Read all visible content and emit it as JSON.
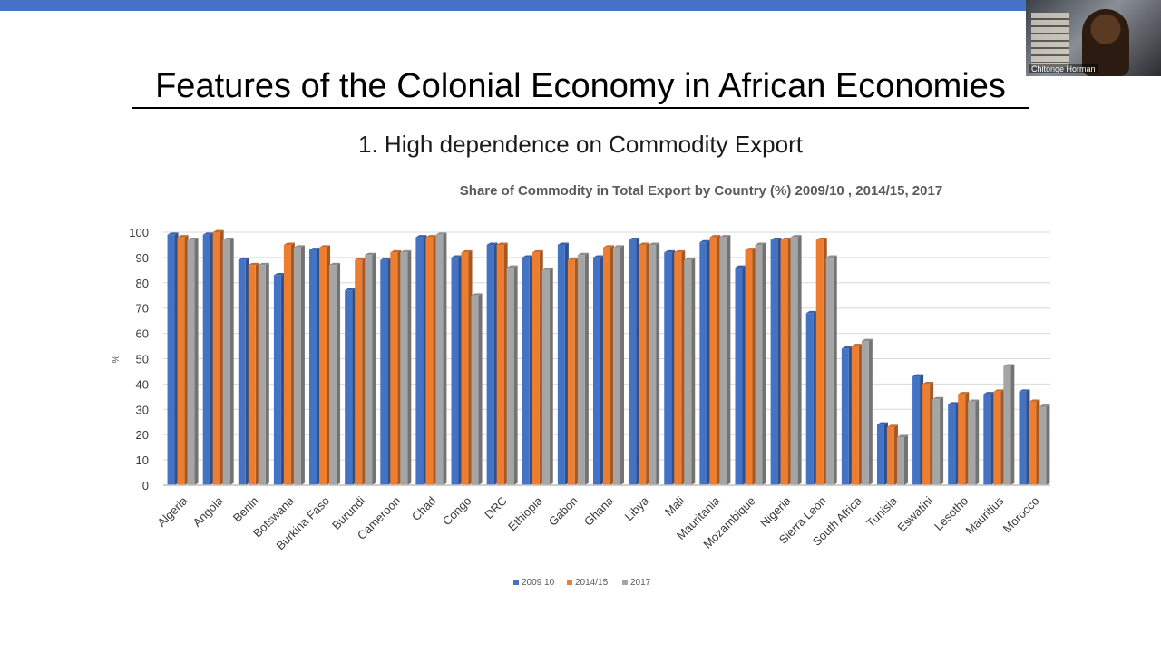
{
  "slide": {
    "title": "Features of the Colonial Economy in African Economies",
    "subtitle": "1. High dependence on Commodity Export"
  },
  "video": {
    "participant_name": "Chitonge  Horman"
  },
  "colors": {
    "top_bar": "#4472c4",
    "series_2009_10": "#4472c4",
    "series_2014_15": "#ed7d31",
    "series_2017": "#a5a5a5"
  },
  "chart_data": {
    "type": "bar",
    "title": "Share of Commodity in Total Export by Country (%) 2009/10 , 2014/15, 2017",
    "xlabel": "",
    "ylabel": "%",
    "ylim": [
      0,
      100
    ],
    "yticks": [
      0,
      10,
      20,
      30,
      40,
      50,
      60,
      70,
      80,
      90,
      100
    ],
    "grid": true,
    "legend_position": "bottom",
    "categories": [
      "Algeria",
      "Angola",
      "Benin",
      "Botswana",
      "Burkina Faso",
      "Burundi",
      "Cameroon",
      "Chad",
      "Congo",
      "DRC",
      "Ethiopia",
      "Gabon",
      "Ghana",
      "Libya",
      "Mali",
      "Mauritania",
      "Mozambique",
      "Nigeria",
      "Sierra Leon",
      "South Africa",
      "Tunisia",
      "Eswatini",
      "Lesotho",
      "Mauritius",
      "Morocco"
    ],
    "series": [
      {
        "name": "2009 10",
        "color": "#4472c4",
        "values": [
          99,
          99,
          89,
          83,
          93,
          77,
          89,
          98,
          90,
          95,
          90,
          95,
          90,
          97,
          92,
          96,
          86,
          97,
          68,
          54,
          24,
          43,
          32,
          36,
          37
        ]
      },
      {
        "name": "2014/15",
        "color": "#ed7d31",
        "values": [
          98,
          100,
          87,
          95,
          94,
          89,
          92,
          98,
          92,
          95,
          92,
          89,
          94,
          95,
          92,
          98,
          93,
          97,
          97,
          55,
          23,
          40,
          36,
          37,
          33
        ]
      },
      {
        "name": "2017",
        "color": "#a5a5a5",
        "values": [
          97,
          97,
          87,
          94,
          87,
          91,
          92,
          99,
          75,
          86,
          85,
          91,
          94,
          95,
          89,
          98,
          95,
          98,
          90,
          57,
          19,
          34,
          33,
          47,
          31
        ]
      }
    ]
  }
}
